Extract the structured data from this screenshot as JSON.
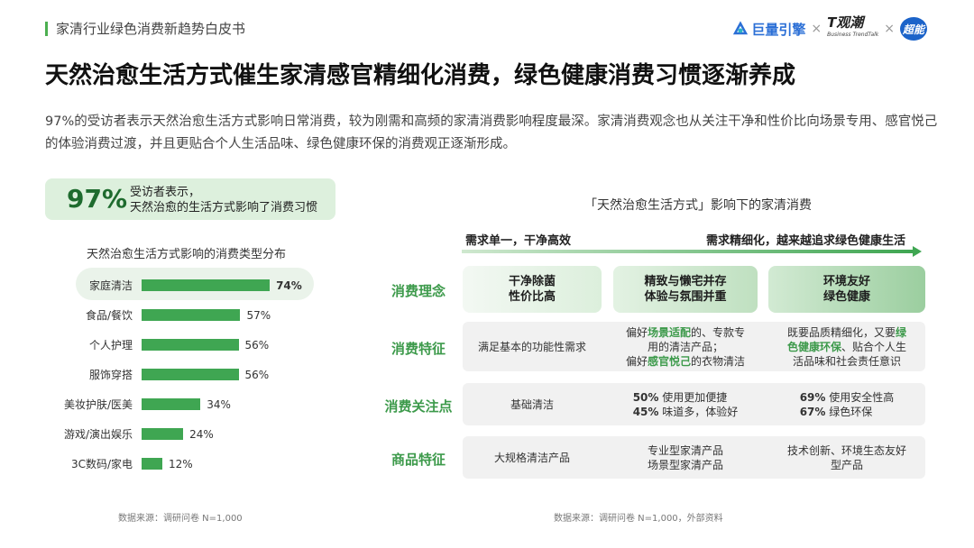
{
  "header": {
    "report_title": "家清行业绿色消费新趋势白皮书",
    "brands": [
      {
        "name": "巨量引擎"
      },
      {
        "separator": "×"
      },
      {
        "name": "T观潮",
        "tagline": "Business TrendTalk"
      },
      {
        "separator2": "×"
      },
      {
        "name": "超能"
      }
    ]
  },
  "title": "天然治愈生活方式催生家清感官精细化消费，绿色健康消费习惯逐渐养成",
  "intro": "97%的受访者表示天然治愈生活方式影响日常消费，较为刚需和高频的家清消费影响程度最深。家清消费观念也从关注干净和性价比向场景专用、感官悦己的体验消费过渡，并且更贴合个人生活品味、绿色健康环保的消费观正逐渐形成。",
  "callout": {
    "percent": "97%",
    "line1": "受访者表示，",
    "line2": "天然治愈的生活方式影响了消费习惯"
  },
  "chart_data": {
    "type": "bar",
    "orientation": "horizontal",
    "title": "天然治愈生活方式影响的消费类型分布",
    "categories": [
      "家庭清洁",
      "食品/餐饮",
      "个人护理",
      "服饰穿搭",
      "美妆护肤/医美",
      "游戏/演出娱乐",
      "3C数码/家电"
    ],
    "values": [
      74,
      57,
      56,
      56,
      34,
      24,
      12
    ],
    "value_labels": [
      "74%",
      "57%",
      "56%",
      "56%",
      "34%",
      "24%",
      "12%"
    ],
    "unit": "%",
    "xlim": [
      0,
      100
    ],
    "highlight": "家庭清洁",
    "bar_color": "#3fa652"
  },
  "left_source": "数据来源：调研问卷 N=1,000",
  "right": {
    "title": "「天然治愈生活方式」影响下的家清消费",
    "arrow_left": "需求单一，干净高效",
    "arrow_right": "需求精细化，越来越追求绿色健康生活",
    "rows": {
      "concept": {
        "label": "消费理念",
        "c1": {
          "l1": "干净除菌",
          "l2": "性价比高"
        },
        "c2": {
          "l1": "精致与懒宅并存",
          "l2": "体验与氛围并重"
        },
        "c3": {
          "l1": "环境友好",
          "l2": "绿色健康"
        }
      },
      "feature": {
        "label": "消费特征",
        "c1": "满足基本的功能性需求",
        "c2": {
          "a": "偏好",
          "b": "场景适配",
          "c": "的、专款专",
          "d": "用的清洁产品；",
          "e": "偏好",
          "f": "感官悦己",
          "g": "的衣物清洁"
        },
        "c3": {
          "a": "既要品质精细化，又要",
          "b": "绿",
          "c": "色健康环保",
          "d": "、贴合个人生",
          "e": "活品味和社会责任意识"
        }
      },
      "focus": {
        "label": "消费关注点",
        "c1": "基础清洁",
        "c2": {
          "p1": "50%",
          "t1": "使用更加便捷",
          "p2": "45%",
          "t2": "味道多，体验好"
        },
        "c3": {
          "p1": "69%",
          "t1": "使用安全性高",
          "p2": "67%",
          "t2": "绿色环保"
        }
      },
      "product": {
        "label": "商品特征",
        "c1": "大规格清洁产品",
        "c2": {
          "l1": "专业型家清产品",
          "l2": "场景型家清产品"
        },
        "c3": {
          "l1": "技术创新、环境生态友好",
          "l2": "型产品"
        }
      }
    },
    "source": "数据来源：调研问卷 N=1,000，外部资料"
  },
  "colors": {
    "accent_green": "#3fa652",
    "label_green": "#3d9a4b",
    "callout_bg": "#ddf0dd",
    "row_bg": "#f1f1f1"
  }
}
